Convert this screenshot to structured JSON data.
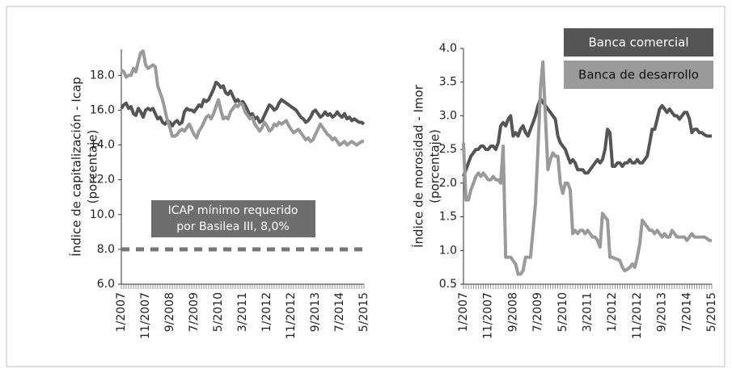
{
  "chart_data": [
    {
      "type": "line",
      "ylabel": [
        "Índice de capitalización - Icap",
        "(porcentaje)"
      ],
      "annotation": [
        "ICAP mínimo requerido",
        "por Basilea III, 8,0%"
      ],
      "reference_line": 8,
      "categories": [
        "1/2007",
        null,
        null,
        null,
        null,
        null,
        null,
        null,
        null,
        null,
        "11/2007",
        null,
        null,
        null,
        null,
        null,
        null,
        null,
        null,
        null,
        "9/2008",
        null,
        null,
        null,
        null,
        null,
        null,
        null,
        null,
        null,
        "7/2009",
        null,
        null,
        null,
        null,
        null,
        null,
        null,
        null,
        null,
        "5/2010",
        null,
        null,
        null,
        null,
        null,
        null,
        null,
        null,
        null,
        "3/2011",
        null,
        null,
        null,
        null,
        null,
        null,
        null,
        null,
        null,
        "1/2012",
        null,
        null,
        null,
        null,
        null,
        null,
        null,
        null,
        null,
        "11/2012",
        null,
        null,
        null,
        null,
        null,
        null,
        null,
        null,
        null,
        "9/2013",
        null,
        null,
        null,
        null,
        null,
        null,
        null,
        null,
        null,
        "7/2014",
        null,
        null,
        null,
        null,
        null,
        null,
        null,
        null,
        null,
        "5/2015"
      ],
      "series": [
        {
          "color": "#555555",
          "values": [
            16.1,
            16.3,
            16.4,
            16.1,
            16.2,
            15.8,
            15.7,
            16.1,
            15.9,
            15.6,
            16.0,
            16.1,
            16.0,
            16.1,
            15.8,
            15.5,
            15.6,
            15.3,
            15.2,
            15.4,
            15.3,
            15.1,
            15.3,
            15.4,
            15.2,
            15.3,
            15.9,
            16.1,
            16.0,
            16.0,
            15.9,
            16.1,
            16.3,
            16.2,
            16.6,
            16.5,
            16.6,
            16.9,
            17.2,
            17.6,
            17.5,
            17.3,
            17.4,
            17.0,
            16.9,
            17.1,
            16.8,
            16.5,
            16.6,
            16.4,
            16.5,
            16.3,
            16.0,
            15.7,
            15.8,
            15.5,
            15.6,
            15.3,
            15.4,
            15.7,
            16.0,
            16.3,
            16.2,
            16.0,
            16.1,
            16.4,
            16.6,
            16.5,
            16.4,
            16.3,
            16.2,
            16.1,
            16.0,
            15.8,
            15.6,
            15.5,
            15.3,
            15.4,
            15.6,
            15.9,
            16.0,
            15.8,
            15.6,
            15.7,
            15.9,
            15.7,
            15.8,
            15.6,
            15.7,
            15.9,
            15.7,
            15.6,
            15.8,
            15.5,
            15.6,
            15.4,
            15.5,
            15.4,
            15.3,
            15.3,
            15.2
          ]
        },
        {
          "color": "#9a9a9a",
          "values": [
            18.3,
            18.2,
            17.9,
            18.0,
            18.0,
            18.4,
            18.2,
            18.8,
            19.3,
            19.4,
            18.6,
            18.4,
            18.5,
            18.6,
            18.5,
            17.4,
            17.0,
            16.6,
            16.0,
            15.4,
            15.0,
            14.5,
            14.5,
            14.6,
            14.8,
            14.9,
            14.8,
            15.0,
            15.2,
            14.9,
            14.6,
            14.4,
            14.8,
            15.0,
            15.3,
            15.6,
            15.7,
            15.5,
            15.8,
            16.2,
            16.6,
            16.0,
            15.5,
            15.6,
            15.5,
            15.9,
            16.1,
            16.3,
            16.2,
            16.4,
            16.3,
            15.9,
            15.7,
            15.5,
            15.6,
            15.2,
            15.0,
            14.8,
            15.0,
            15.3,
            15.1,
            14.8,
            14.9,
            15.2,
            15.1,
            15.3,
            15.2,
            15.3,
            15.4,
            15.1,
            14.9,
            14.7,
            14.8,
            14.9,
            14.7,
            14.5,
            14.3,
            14.4,
            14.2,
            14.3,
            14.6,
            14.9,
            15.2,
            15.0,
            14.8,
            14.6,
            14.5,
            14.3,
            14.4,
            14.2,
            14.0,
            14.1,
            14.2,
            14.0,
            14.1,
            14.2,
            14.1,
            14.0,
            14.1,
            14.2,
            14.2
          ]
        }
      ],
      "ylim": [
        6,
        19.5
      ],
      "yticks": [
        {
          "value": 6,
          "label": "6.0"
        },
        {
          "value": 8,
          "label": "8.0"
        },
        {
          "value": 10,
          "label": "10.0"
        },
        {
          "value": 12,
          "label": "12.0"
        },
        {
          "value": 14,
          "label": "14.0"
        },
        {
          "value": 16,
          "label": "16.0"
        },
        {
          "value": 18,
          "label": "18.0"
        }
      ],
      "grid": false
    },
    {
      "type": "line",
      "ylabel": [
        "Índice de morosidad - Imor",
        "(porcentaje)"
      ],
      "legend": "top-right",
      "categories": [
        "1/2007",
        null,
        null,
        null,
        null,
        null,
        null,
        null,
        null,
        null,
        "11/2007",
        null,
        null,
        null,
        null,
        null,
        null,
        null,
        null,
        null,
        "9/2008",
        null,
        null,
        null,
        null,
        null,
        null,
        null,
        null,
        null,
        "7/2009",
        null,
        null,
        null,
        null,
        null,
        null,
        null,
        null,
        null,
        "5/2010",
        null,
        null,
        null,
        null,
        null,
        null,
        null,
        null,
        null,
        "3/2011",
        null,
        null,
        null,
        null,
        null,
        null,
        null,
        null,
        null,
        "1/2012",
        null,
        null,
        null,
        null,
        null,
        null,
        null,
        null,
        null,
        "11/2012",
        null,
        null,
        null,
        null,
        null,
        null,
        null,
        null,
        null,
        "9/2013",
        null,
        null,
        null,
        null,
        null,
        null,
        null,
        null,
        null,
        "7/2014",
        null,
        null,
        null,
        null,
        null,
        null,
        null,
        null,
        null,
        "5/2015"
      ],
      "series": [
        {
          "name": "Banca comercial",
          "color": "#555555",
          "values": [
            2.1,
            2.2,
            2.3,
            2.4,
            2.45,
            2.5,
            2.5,
            2.55,
            2.55,
            2.5,
            2.5,
            2.55,
            2.55,
            2.5,
            2.6,
            2.85,
            2.9,
            2.85,
            2.95,
            3.0,
            2.7,
            2.75,
            2.7,
            2.8,
            2.85,
            2.75,
            2.7,
            2.8,
            2.9,
            3.0,
            3.15,
            3.25,
            3.2,
            3.15,
            3.1,
            3.05,
            3.0,
            2.95,
            2.7,
            2.6,
            2.55,
            2.5,
            2.4,
            2.3,
            2.35,
            2.3,
            2.2,
            2.2,
            2.2,
            2.15,
            2.15,
            2.2,
            2.25,
            2.3,
            2.35,
            2.3,
            2.35,
            2.5,
            2.8,
            2.75,
            2.25,
            2.25,
            2.3,
            2.3,
            2.25,
            2.3,
            2.3,
            2.35,
            2.3,
            2.3,
            2.35,
            2.3,
            2.3,
            2.35,
            2.4,
            2.6,
            2.8,
            2.8,
            2.95,
            3.1,
            3.15,
            3.1,
            3.05,
            3.1,
            3.05,
            3.0,
            3.0,
            2.95,
            3.0,
            3.05,
            3.05,
            2.95,
            2.75,
            2.8,
            2.8,
            2.75,
            2.75,
            2.72,
            2.7,
            2.7,
            2.7
          ]
        },
        {
          "name": "Banca de desarrollo",
          "color": "#9a9a9a",
          "values": [
            2.6,
            1.75,
            1.75,
            1.9,
            2.0,
            2.1,
            2.15,
            2.1,
            2.15,
            2.1,
            2.05,
            2.05,
            2.1,
            2.05,
            2.05,
            2.0,
            2.55,
            0.9,
            0.9,
            0.9,
            0.85,
            0.8,
            0.65,
            0.65,
            0.7,
            0.9,
            0.9,
            0.9,
            1.3,
            1.7,
            2.5,
            3.4,
            3.8,
            3.0,
            2.2,
            2.35,
            2.45,
            2.4,
            2.4,
            2.0,
            1.85,
            2.0,
            2.0,
            1.9,
            1.25,
            1.3,
            1.25,
            1.3,
            1.3,
            1.25,
            1.3,
            1.25,
            1.2,
            1.2,
            1.15,
            1.05,
            1.55,
            1.5,
            1.45,
            0.9,
            0.9,
            0.88,
            0.87,
            0.85,
            0.75,
            0.7,
            0.72,
            0.75,
            0.8,
            0.75,
            0.9,
            1.1,
            1.45,
            1.4,
            1.35,
            1.3,
            1.3,
            1.25,
            1.3,
            1.25,
            1.2,
            1.25,
            1.2,
            1.2,
            1.3,
            1.25,
            1.2,
            1.2,
            1.2,
            1.2,
            1.15,
            1.2,
            1.25,
            1.2,
            1.2,
            1.2,
            1.2,
            1.2,
            1.18,
            1.15,
            1.15
          ]
        }
      ],
      "ylim": [
        0.5,
        4
      ],
      "yticks": [
        0.5,
        {
          "value": 1,
          "label": "1.0"
        },
        1.5,
        {
          "value": 2,
          "label": "2.0"
        },
        2.5,
        {
          "value": 3,
          "label": "3.0"
        },
        3.5,
        {
          "value": 4,
          "label": "4.0"
        }
      ],
      "grid": false
    }
  ]
}
